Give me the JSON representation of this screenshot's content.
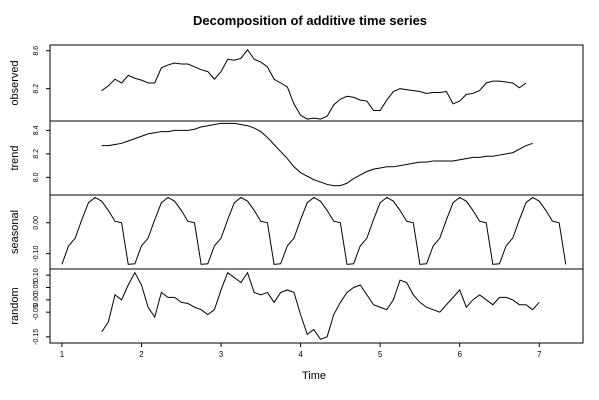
{
  "chart_data": {
    "type": "line",
    "title": "Decomposition of additive time series",
    "xlabel": "Time",
    "x_ticks": [
      1,
      2,
      3,
      4,
      5,
      6,
      7
    ],
    "xlim": [
      0.85,
      7.55
    ],
    "grid": false,
    "panels": [
      {
        "name": "observed",
        "ylabel": "observed",
        "ylim": [
          7.86,
          8.66
        ],
        "y_ticks": [
          8.2,
          8.6
        ],
        "series": [
          {
            "x_start": 1.5,
            "x_step": 0.0833333,
            "values": [
              8.18,
              8.23,
              8.3,
              8.26,
              8.34,
              8.31,
              8.29,
              8.26,
              8.26,
              8.42,
              8.45,
              8.47,
              8.46,
              8.46,
              8.43,
              8.4,
              8.38,
              8.3,
              8.38,
              8.51,
              8.5,
              8.52,
              8.61,
              8.51,
              8.48,
              8.43,
              8.3,
              8.26,
              8.22,
              8.04,
              7.92,
              7.88,
              7.89,
              7.88,
              7.91,
              8.03,
              8.09,
              8.12,
              8.11,
              8.08,
              8.07,
              7.97,
              7.97,
              8.08,
              8.17,
              8.2,
              8.19,
              8.18,
              8.17,
              8.15,
              8.16,
              8.16,
              8.17,
              8.04,
              8.07,
              8.14,
              8.15,
              8.18,
              8.26,
              8.28,
              8.28,
              8.27,
              8.26,
              8.21,
              8.26
            ]
          }
        ]
      },
      {
        "name": "trend",
        "ylabel": "trend",
        "ylim": [
          7.85,
          8.48
        ],
        "y_ticks": [
          8.0,
          8.2,
          8.4
        ],
        "series": [
          {
            "x_start": 1.5,
            "x_step": 0.0833333,
            "values": [
              8.27,
              8.27,
              8.28,
              8.29,
              8.31,
              8.33,
              8.35,
              8.37,
              8.38,
              8.39,
              8.39,
              8.4,
              8.4,
              8.4,
              8.41,
              8.43,
              8.44,
              8.45,
              8.46,
              8.46,
              8.46,
              8.45,
              8.44,
              8.42,
              8.39,
              8.34,
              8.28,
              8.22,
              8.16,
              8.09,
              8.04,
              8.01,
              7.98,
              7.96,
              7.94,
              7.93,
              7.93,
              7.95,
              7.99,
              8.02,
              8.05,
              8.07,
              8.08,
              8.09,
              8.09,
              8.1,
              8.11,
              8.12,
              8.13,
              8.13,
              8.14,
              8.14,
              8.14,
              8.14,
              8.15,
              8.16,
              8.17,
              8.17,
              8.18,
              8.18,
              8.19,
              8.2,
              8.21,
              8.24,
              8.27,
              8.29
            ]
          }
        ]
      },
      {
        "name": "seasonal",
        "ylabel": "seasonal",
        "ylim": [
          -0.15,
          0.09
        ],
        "y_ticks": [
          -0.1,
          0.0
        ],
        "series": [
          {
            "x_start": 1.0,
            "x_step": 0.0833333,
            "values": [
              -0.135,
              -0.075,
              -0.05,
              0.01,
              0.065,
              0.082,
              0.07,
              0.04,
              0.005,
              0.0,
              -0.135,
              -0.133,
              -0.075,
              -0.05,
              0.01,
              0.065,
              0.082,
              0.07,
              0.04,
              0.005,
              0.0,
              -0.135,
              -0.133,
              -0.075,
              -0.05,
              0.01,
              0.065,
              0.082,
              0.07,
              0.04,
              0.005,
              0.0,
              -0.135,
              -0.133,
              -0.075,
              -0.05,
              0.01,
              0.065,
              0.082,
              0.07,
              0.04,
              0.005,
              0.0,
              -0.135,
              -0.133,
              -0.075,
              -0.05,
              0.01,
              0.065,
              0.082,
              0.07,
              0.04,
              0.005,
              0.0,
              -0.135,
              -0.133,
              -0.075,
              -0.05,
              0.01,
              0.065,
              0.082,
              0.07,
              0.04,
              0.005,
              0.0,
              -0.135,
              -0.133,
              -0.075,
              -0.05,
              0.01,
              0.065,
              0.082,
              0.07,
              0.04,
              0.005,
              0.0,
              -0.135
            ]
          }
        ]
      },
      {
        "name": "random",
        "ylabel": "random",
        "ylim": [
          -0.175,
          0.125
        ],
        "y_ticks": [
          -0.15,
          -0.05,
          0.0,
          0.05,
          0.1
        ],
        "series": [
          {
            "x_start": 1.5,
            "x_step": 0.0833333,
            "values": [
              -0.13,
              -0.09,
              0.02,
              0.0,
              0.06,
              0.11,
              0.06,
              -0.03,
              -0.07,
              0.03,
              0.01,
              0.01,
              -0.01,
              -0.015,
              -0.03,
              -0.04,
              -0.06,
              -0.04,
              0.04,
              0.11,
              0.09,
              0.07,
              0.11,
              0.03,
              0.02,
              0.03,
              -0.01,
              0.03,
              0.04,
              0.03,
              -0.06,
              -0.14,
              -0.12,
              -0.16,
              -0.15,
              -0.06,
              -0.01,
              0.03,
              0.05,
              0.06,
              0.02,
              -0.02,
              -0.03,
              -0.04,
              0.0,
              0.08,
              0.07,
              0.02,
              -0.01,
              -0.03,
              -0.04,
              -0.05,
              -0.02,
              0.01,
              0.04,
              -0.03,
              0.0,
              0.02,
              0.0,
              -0.02,
              0.01,
              0.01,
              0.0,
              -0.02,
              -0.02,
              -0.04,
              -0.01
            ]
          }
        ]
      }
    ]
  }
}
